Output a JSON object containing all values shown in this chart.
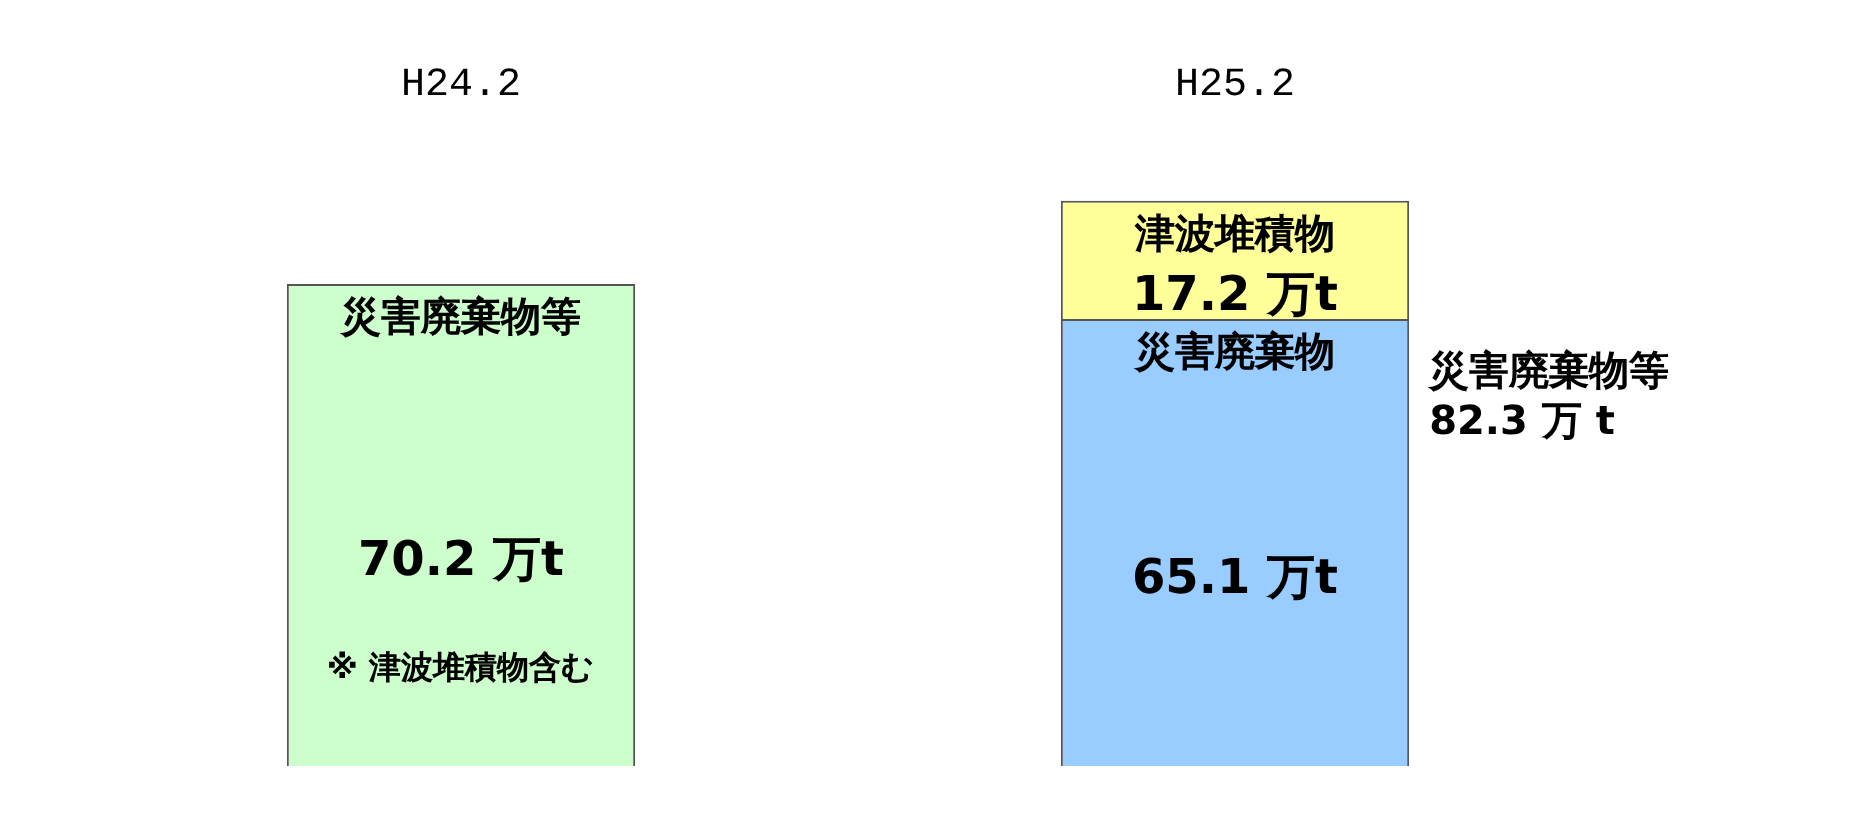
{
  "chart_data": {
    "type": "bar",
    "stacked": true,
    "categories": [
      "H24.2",
      "H25.2"
    ],
    "tick_labels": "x",
    "grid": false,
    "legend": false,
    "series": [
      {
        "name": "災害廃棄物等",
        "values": [
          70.2,
          null
        ],
        "color": "#ccffcc",
        "value_labels": [
          "70.2 万t",
          null
        ]
      },
      {
        "name": "災害廃棄物",
        "values": [
          null,
          65.1
        ],
        "color": "#99ccff",
        "value_labels": [
          null,
          "65.1 万t"
        ]
      },
      {
        "name": "津波堆積物",
        "values": [
          null,
          17.2
        ],
        "color": "#ffff99",
        "value_labels": [
          null,
          "17.2 万t"
        ]
      }
    ],
    "totals": [
      null,
      "災害廃棄物等\n82.3 万 t"
    ],
    "annotations": [
      "※ 津波堆積物含む"
    ]
  }
}
